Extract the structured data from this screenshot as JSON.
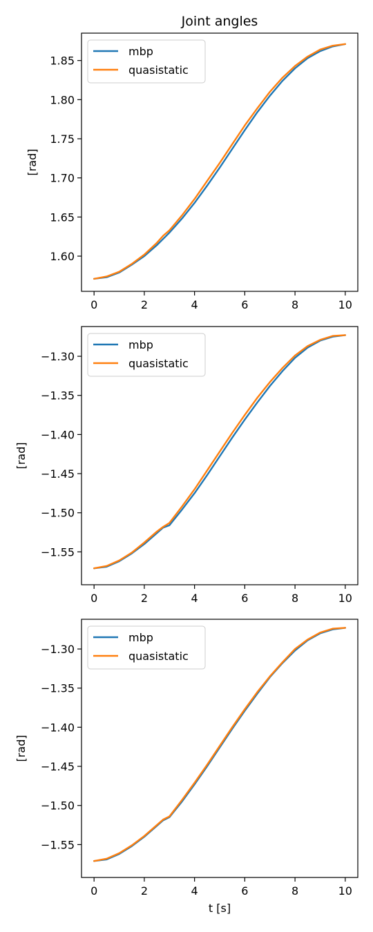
{
  "figure": {
    "title": "Joint angles"
  },
  "chart_data": [
    {
      "type": "line",
      "title": "Joint angles",
      "xlabel": "",
      "ylabel": "[rad]",
      "xlim": [
        -0.5,
        10.5
      ],
      "ylim": [
        1.555,
        1.885
      ],
      "xticks": [
        0,
        2,
        4,
        6,
        8,
        10
      ],
      "xtick_labels": [
        "0",
        "2",
        "4",
        "6",
        "8",
        "10"
      ],
      "yticks": [
        1.6,
        1.65,
        1.7,
        1.75,
        1.8,
        1.85
      ],
      "ytick_labels": [
        "1.60",
        "1.65",
        "1.70",
        "1.75",
        "1.80",
        "1.85"
      ],
      "legend_position": "top-left",
      "grid": false,
      "x": [
        0,
        0.5,
        1,
        1.5,
        2,
        2.5,
        2.75,
        3,
        3.5,
        4,
        4.5,
        5,
        5.5,
        6,
        6.5,
        7,
        7.5,
        8,
        8.5,
        9,
        9.5,
        10
      ],
      "series": [
        {
          "name": "mbp",
          "color": "#1f77b4",
          "values": [
            1.571,
            1.573,
            1.579,
            1.589,
            1.6,
            1.614,
            1.622,
            1.63,
            1.648,
            1.668,
            1.69,
            1.713,
            1.737,
            1.761,
            1.784,
            1.805,
            1.824,
            1.84,
            1.853,
            1.862,
            1.868,
            1.871
          ]
        },
        {
          "name": "quasistatic",
          "color": "#ff7f0e",
          "values": [
            1.571,
            1.574,
            1.58,
            1.59,
            1.602,
            1.617,
            1.626,
            1.633,
            1.652,
            1.673,
            1.696,
            1.719,
            1.743,
            1.767,
            1.789,
            1.81,
            1.828,
            1.843,
            1.855,
            1.864,
            1.869,
            1.871
          ]
        }
      ]
    },
    {
      "type": "line",
      "xlabel": "",
      "ylabel": "[rad]",
      "xlim": [
        -0.5,
        10.5
      ],
      "ylim": [
        -1.592,
        -1.262
      ],
      "xticks": [
        0,
        2,
        4,
        6,
        8,
        10
      ],
      "xtick_labels": [
        "0",
        "2",
        "4",
        "6",
        "8",
        "10"
      ],
      "yticks": [
        -1.55,
        -1.5,
        -1.45,
        -1.4,
        -1.35,
        -1.3
      ],
      "ytick_labels": [
        "−1.55",
        "−1.50",
        "−1.45",
        "−1.40",
        "−1.35",
        "−1.30"
      ],
      "legend_position": "top-left",
      "grid": false,
      "x": [
        0,
        0.5,
        1,
        1.5,
        2,
        2.5,
        2.75,
        3,
        3.5,
        4,
        4.5,
        5,
        5.5,
        6,
        6.5,
        7,
        7.5,
        8,
        8.5,
        9,
        9.5,
        10
      ],
      "series": [
        {
          "name": "mbp",
          "color": "#1f77b4",
          "values": [
            -1.571,
            -1.569,
            -1.562,
            -1.552,
            -1.54,
            -1.526,
            -1.519,
            -1.516,
            -1.496,
            -1.475,
            -1.452,
            -1.428,
            -1.404,
            -1.381,
            -1.359,
            -1.338,
            -1.319,
            -1.302,
            -1.289,
            -1.28,
            -1.275,
            -1.273
          ]
        },
        {
          "name": "quasistatic",
          "color": "#ff7f0e",
          "values": [
            -1.571,
            -1.568,
            -1.561,
            -1.551,
            -1.538,
            -1.524,
            -1.518,
            -1.513,
            -1.492,
            -1.47,
            -1.446,
            -1.422,
            -1.398,
            -1.375,
            -1.353,
            -1.333,
            -1.315,
            -1.299,
            -1.287,
            -1.279,
            -1.274,
            -1.273
          ]
        }
      ]
    },
    {
      "type": "line",
      "xlabel": "t [s]",
      "ylabel": "[rad]",
      "xlim": [
        -0.5,
        10.5
      ],
      "ylim": [
        -1.592,
        -1.262
      ],
      "xticks": [
        0,
        2,
        4,
        6,
        8,
        10
      ],
      "xtick_labels": [
        "0",
        "2",
        "4",
        "6",
        "8",
        "10"
      ],
      "yticks": [
        -1.55,
        -1.5,
        -1.45,
        -1.4,
        -1.35,
        -1.3
      ],
      "ytick_labels": [
        "−1.55",
        "−1.50",
        "−1.45",
        "−1.40",
        "−1.35",
        "−1.30"
      ],
      "legend_position": "top-left",
      "grid": false,
      "x": [
        0,
        0.5,
        1,
        1.5,
        2,
        2.5,
        2.75,
        3,
        3.5,
        4,
        4.5,
        5,
        5.5,
        6,
        6.5,
        7,
        7.5,
        8,
        8.5,
        9,
        9.5,
        10
      ],
      "series": [
        {
          "name": "mbp",
          "color": "#1f77b4",
          "values": [
            -1.571,
            -1.569,
            -1.562,
            -1.552,
            -1.54,
            -1.526,
            -1.519,
            -1.515,
            -1.495,
            -1.473,
            -1.45,
            -1.426,
            -1.402,
            -1.379,
            -1.357,
            -1.336,
            -1.318,
            -1.302,
            -1.289,
            -1.28,
            -1.275,
            -1.273
          ]
        },
        {
          "name": "quasistatic",
          "color": "#ff7f0e",
          "values": [
            -1.571,
            -1.568,
            -1.561,
            -1.551,
            -1.539,
            -1.525,
            -1.518,
            -1.514,
            -1.493,
            -1.471,
            -1.448,
            -1.424,
            -1.4,
            -1.377,
            -1.355,
            -1.335,
            -1.317,
            -1.3,
            -1.288,
            -1.279,
            -1.274,
            -1.273
          ]
        }
      ]
    }
  ]
}
